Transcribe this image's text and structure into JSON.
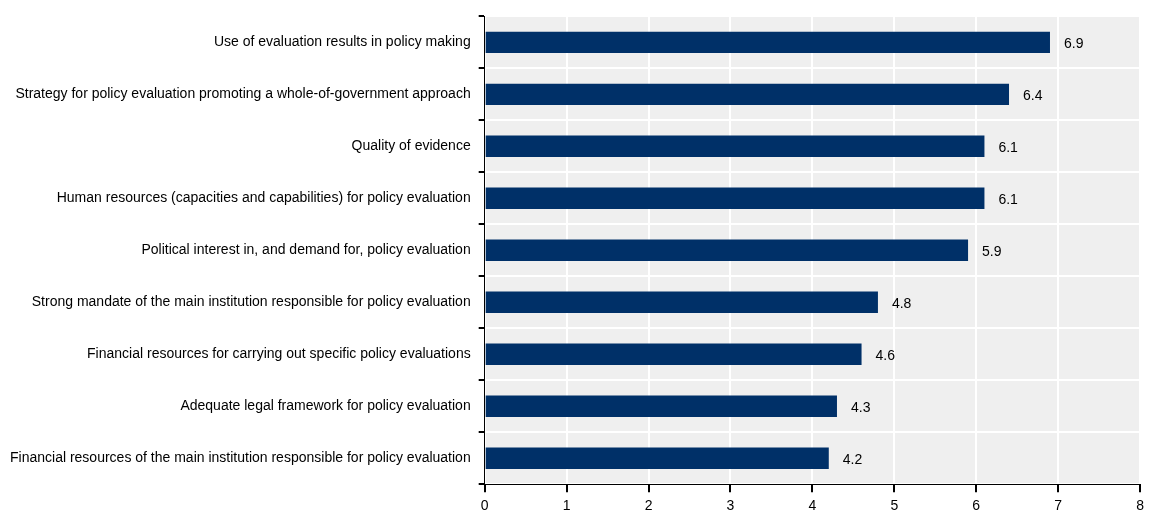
{
  "chart_data": {
    "type": "bar",
    "orientation": "horizontal",
    "categories": [
      "Use of evaluation results in policy making",
      "Strategy for policy evaluation promoting a whole-of-government approach",
      "Quality of evidence",
      "Human resources (capacities and capabilities) for policy evaluation",
      "Political interest in, and demand for, policy evaluation",
      "Strong mandate of the main institution responsible for policy evaluation",
      "Financial resources for carrying out specific policy evaluations",
      "Adequate legal framework for policy evaluation",
      "Financial resources of the main institution responsible for policy evaluation"
    ],
    "values": [
      6.9,
      6.4,
      6.1,
      6.1,
      5.9,
      4.8,
      4.6,
      4.3,
      4.2
    ],
    "color": "#003068",
    "xlim": [
      0,
      8
    ],
    "xticks": [
      0,
      1,
      2,
      3,
      4,
      5,
      6,
      7,
      8
    ],
    "grid": true,
    "data_labels": true,
    "legend": false
  }
}
